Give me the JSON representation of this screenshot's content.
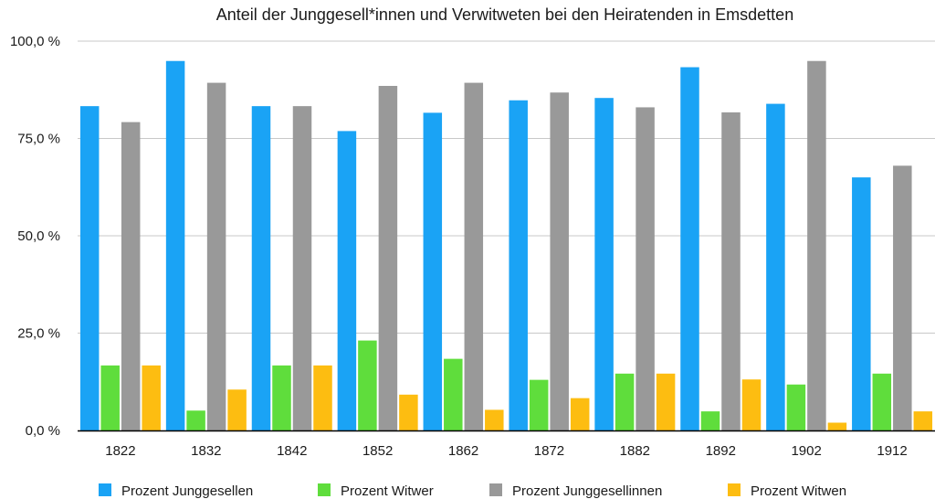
{
  "chart_data": {
    "type": "bar",
    "title": "Anteil der Junggesell*innen und Verwitweten bei den Heiratenden in Emsdetten",
    "xlabel": "",
    "ylabel": "",
    "ylim": [
      0,
      100
    ],
    "yticks": [
      "0,0 %",
      "25,0 %",
      "50,0 %",
      "75,0 %",
      "100,0 %"
    ],
    "ytick_values": [
      0,
      25,
      50,
      75,
      100
    ],
    "grid": true,
    "legend_position": "bottom",
    "categories": [
      "1822",
      "1832",
      "1842",
      "1852",
      "1862",
      "1872",
      "1882",
      "1892",
      "1902",
      "1912"
    ],
    "series": [
      {
        "name": "Prozent Junggesellen",
        "color": "#1aa3f5",
        "values": [
          83.3,
          94.9,
          83.3,
          76.9,
          81.6,
          84.8,
          85.4,
          93.3,
          83.9,
          65.0
        ]
      },
      {
        "name": "Prozent Witwer",
        "color": "#5fdd3c",
        "values": [
          16.7,
          5.1,
          16.7,
          23.1,
          18.4,
          13.0,
          14.6,
          4.9,
          11.8,
          14.6
        ]
      },
      {
        "name": "Prozent Junggesellinnen",
        "color": "#999999",
        "values": [
          79.2,
          89.3,
          83.3,
          88.5,
          89.3,
          86.8,
          83.0,
          81.7,
          94.9,
          68.0
        ]
      },
      {
        "name": "Prozent Witwen",
        "color": "#fdbd11",
        "values": [
          16.7,
          10.5,
          16.7,
          9.2,
          5.3,
          8.3,
          14.6,
          13.1,
          2.0,
          4.9
        ]
      }
    ]
  }
}
